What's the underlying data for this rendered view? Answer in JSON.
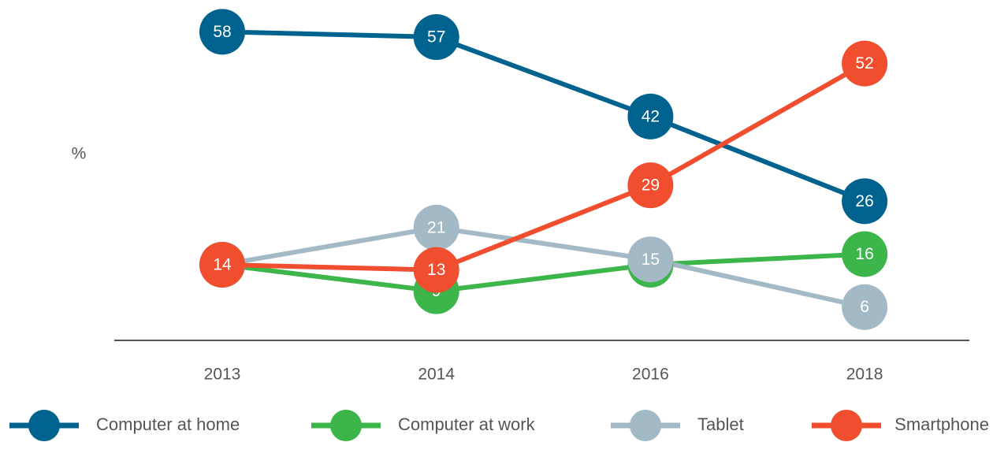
{
  "chart_data": {
    "type": "line",
    "y_label": "%",
    "categories": [
      "2013",
      "2014",
      "2016",
      "2018"
    ],
    "ylim": [
      0,
      64
    ],
    "series": [
      {
        "name": "Computer at home",
        "color": "#00628f",
        "values": [
          58,
          57,
          42,
          26
        ]
      },
      {
        "name": "Computer at work",
        "color": "#3cb54a",
        "values": [
          14,
          9,
          14,
          16
        ]
      },
      {
        "name": "Tablet",
        "color": "#a3b9c6",
        "values": [
          14,
          21,
          15,
          6
        ]
      },
      {
        "name": "Smartphone",
        "color": "#f04e2f",
        "values": [
          14,
          13,
          29,
          52
        ]
      }
    ]
  }
}
